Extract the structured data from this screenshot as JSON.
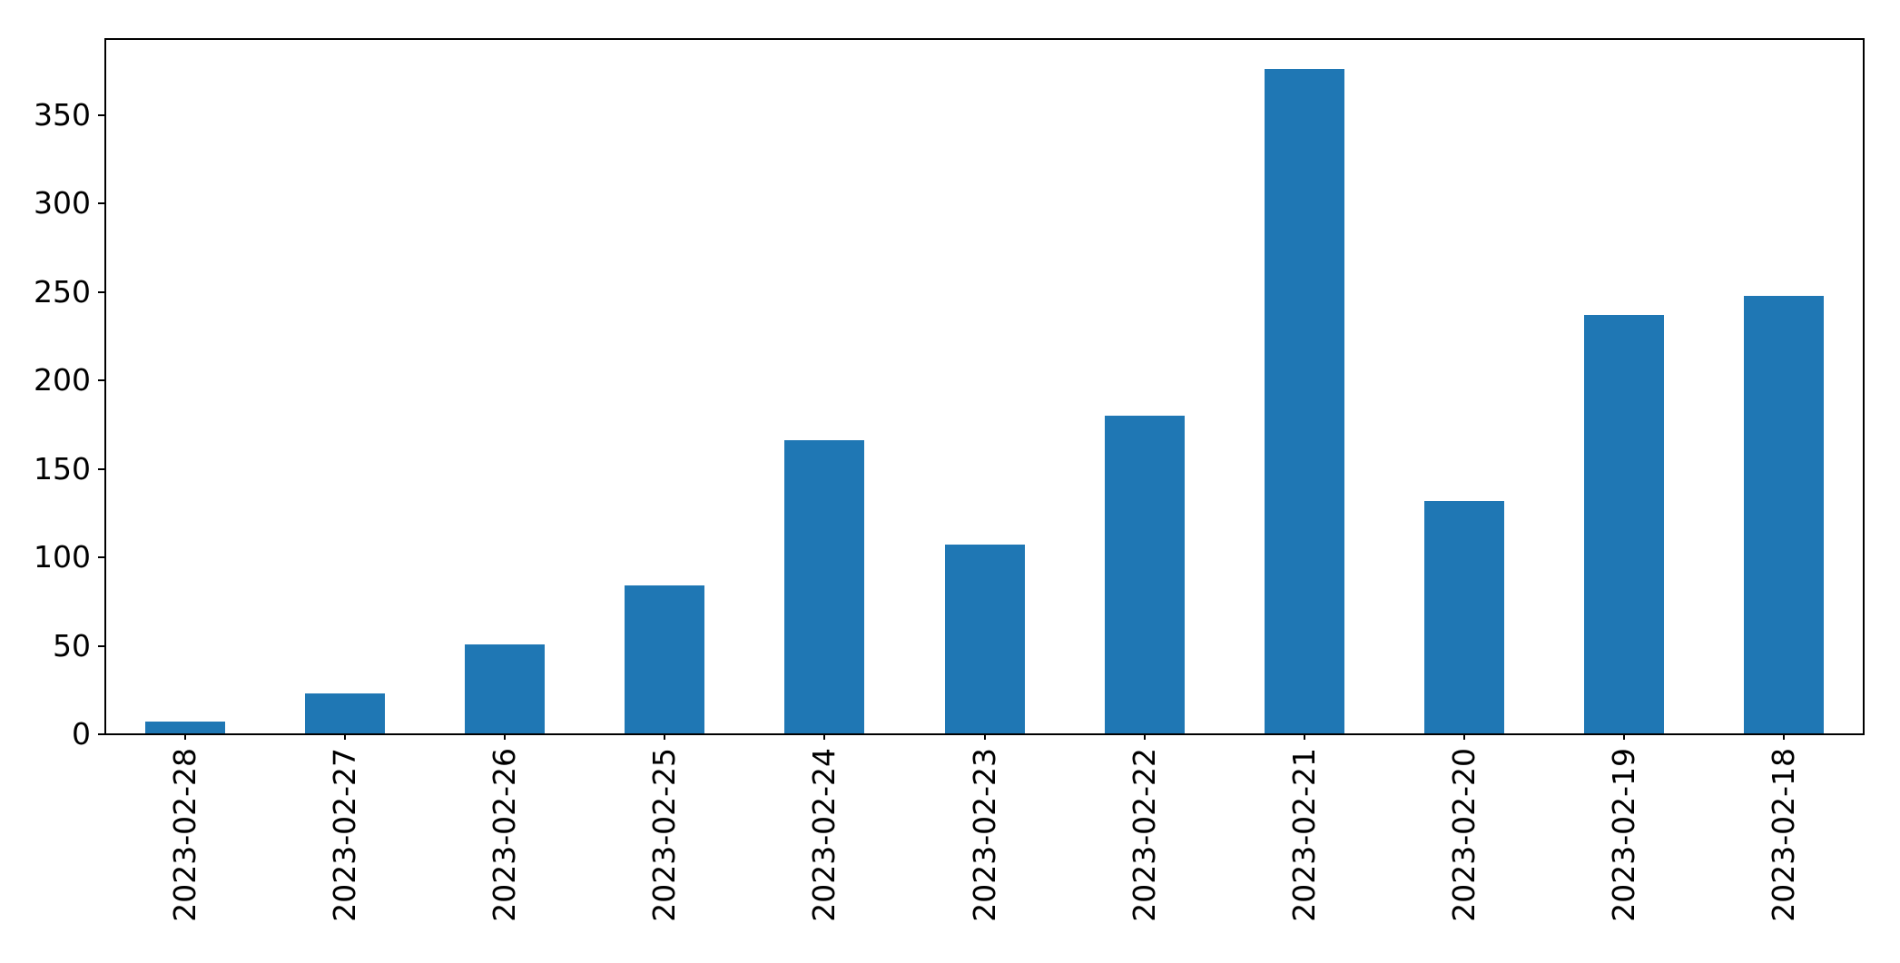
{
  "figure": {
    "background_color": "#ffffff"
  },
  "chart_data": {
    "type": "bar",
    "categories": [
      "2023-02-28",
      "2023-02-27",
      "2023-02-26",
      "2023-02-25",
      "2023-02-24",
      "2023-02-23",
      "2023-02-22",
      "2023-02-21",
      "2023-02-20",
      "2023-02-19",
      "2023-02-18"
    ],
    "values": [
      7,
      23,
      51,
      84,
      166,
      107,
      180,
      376,
      132,
      237,
      248
    ],
    "title": "",
    "xlabel": "",
    "ylabel": "",
    "yticks": [
      0,
      50,
      100,
      150,
      200,
      250,
      300,
      350
    ],
    "ylim": [
      0,
      393
    ],
    "x_tick_rotation": 90,
    "grid": false,
    "legend": false,
    "bar_color": "#1f77b4",
    "axis_color": "#000000",
    "text_color": "#000000"
  }
}
